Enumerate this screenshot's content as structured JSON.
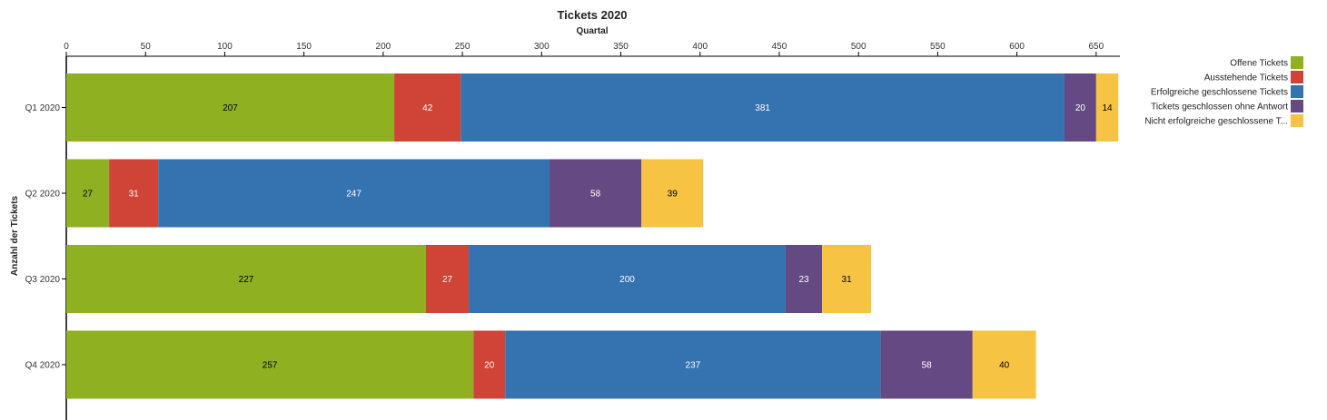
{
  "chart_data": {
    "type": "bar",
    "orientation": "horizontal",
    "stacked": true,
    "title": "Tickets 2020",
    "xlabel": "Quartal",
    "ylabel": "Anzahl der Tickets",
    "xlim": [
      0,
      665
    ],
    "xticks": [
      0,
      50,
      100,
      150,
      200,
      250,
      300,
      350,
      400,
      450,
      500,
      550,
      600,
      650
    ],
    "x_axis_position": "top",
    "grid": false,
    "legend_position": "top-right",
    "categories": [
      "Q1 2020",
      "Q2 2020",
      "Q3 2020",
      "Q4 2020"
    ],
    "series": [
      {
        "name": "Offene Tickets",
        "color": "#8FB021",
        "label_color": "#000000",
        "values": [
          207,
          27,
          227,
          257
        ]
      },
      {
        "name": "Ausstehende Tickets",
        "color": "#D04437",
        "label_color": "#ffffff",
        "values": [
          42,
          31,
          27,
          20
        ]
      },
      {
        "name": "Erfolgreiche geschlossene Tickets",
        "color": "#3572B0",
        "label_color": "#ffffff",
        "values": [
          381,
          247,
          200,
          237
        ]
      },
      {
        "name": "Tickets geschlossen ohne Antwort",
        "color": "#654982",
        "label_color": "#ffffff",
        "values": [
          20,
          58,
          23,
          58
        ]
      },
      {
        "name": "Nicht erfolgreiche geschlossene T...",
        "color": "#F6C342",
        "label_color": "#000000",
        "values": [
          14,
          39,
          31,
          40
        ]
      }
    ]
  }
}
